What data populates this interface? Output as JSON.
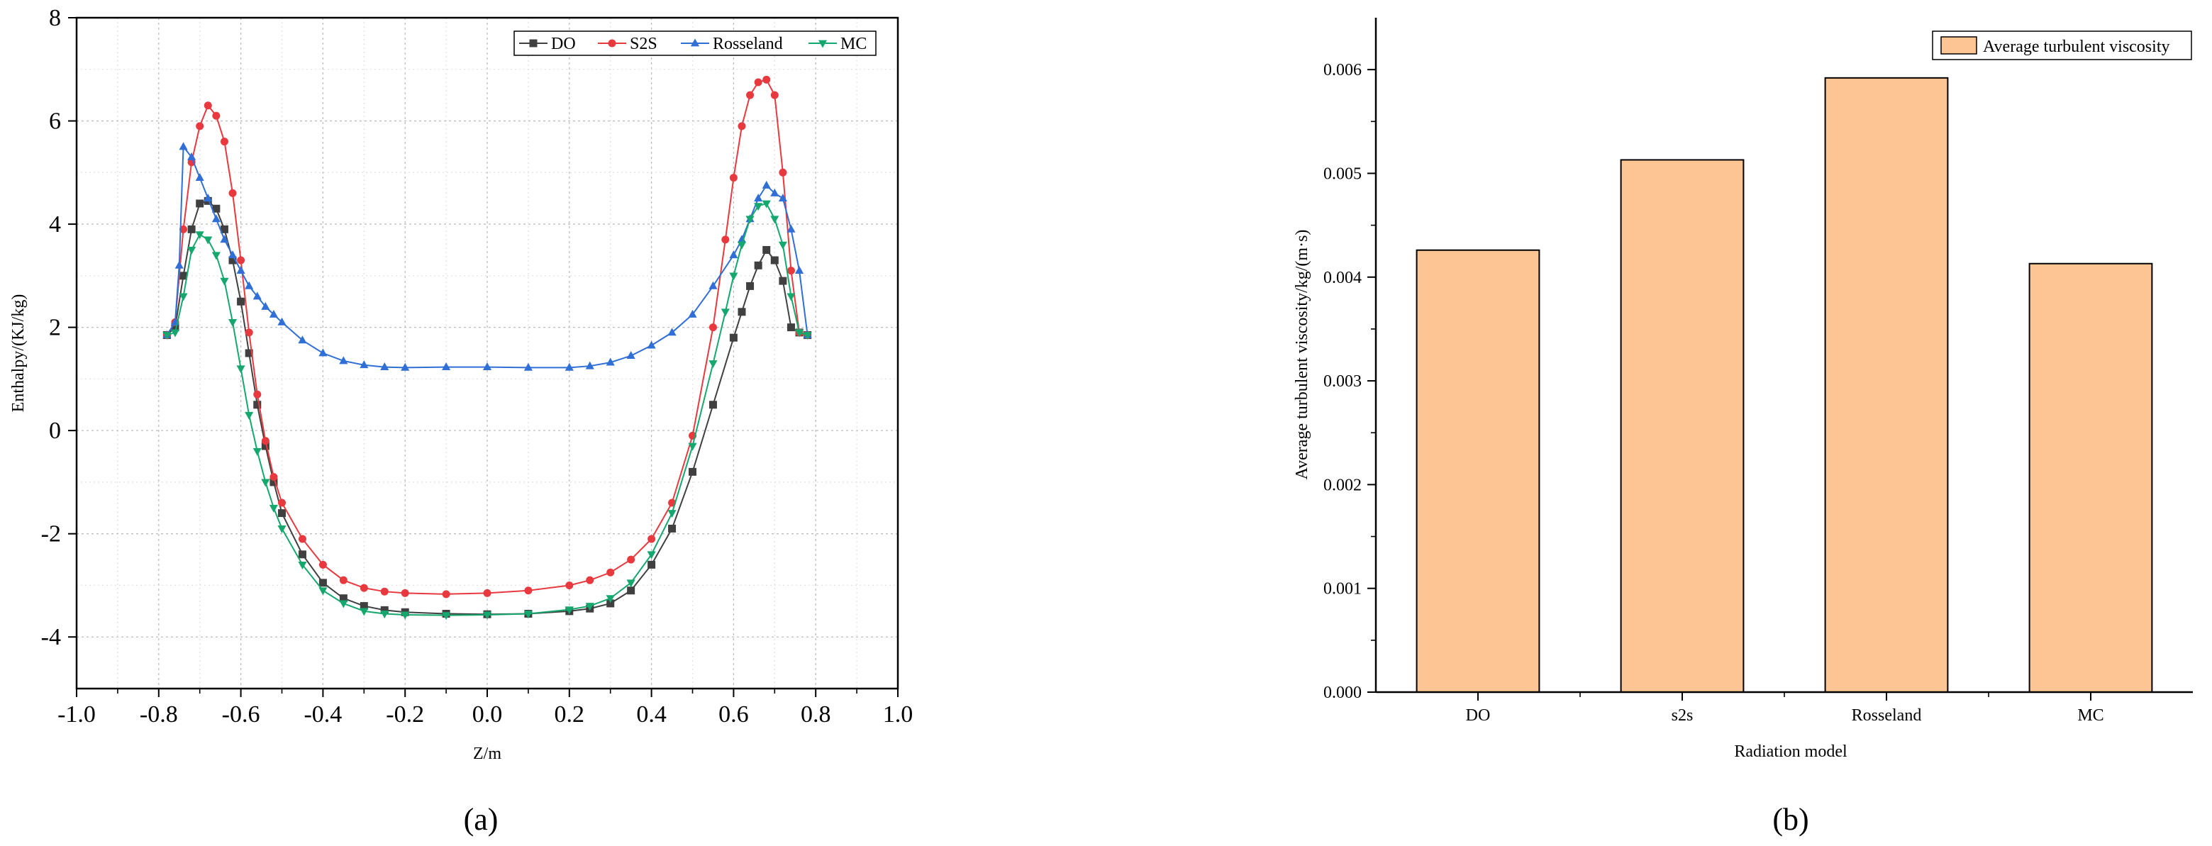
{
  "panel_labels": {
    "a": "(a)",
    "b": "(b)"
  },
  "chart_data": [
    {
      "type": "line",
      "title": "",
      "xlabel": "Z/m",
      "ylabel": "Enthalpy/(KJ/kg)",
      "xlim": [
        -1.0,
        1.0
      ],
      "ylim": [
        -5,
        8
      ],
      "xticks": [
        -1.0,
        -0.8,
        -0.6,
        -0.4,
        -0.2,
        0.0,
        0.2,
        0.4,
        0.6,
        0.8,
        1.0
      ],
      "xtick_labels": [
        "-1.0",
        "-0.8",
        "-0.6",
        "-0.4",
        "-0.2",
        "0.0",
        "0.2",
        "0.4",
        "0.6",
        "0.8",
        "1.0"
      ],
      "yticks": [
        -4,
        -2,
        0,
        2,
        4,
        6,
        8
      ],
      "ytick_labels": [
        "-4",
        "-2",
        "0",
        "2",
        "4",
        "6",
        "8"
      ],
      "grid": true,
      "legend_position": "top-right",
      "series": [
        {
          "name": "DO",
          "color": "#404040",
          "marker": "square",
          "x": [
            -0.78,
            -0.76,
            -0.74,
            -0.72,
            -0.7,
            -0.68,
            -0.66,
            -0.64,
            -0.62,
            -0.6,
            -0.58,
            -0.56,
            -0.54,
            -0.52,
            -0.5,
            -0.45,
            -0.4,
            -0.35,
            -0.3,
            -0.25,
            -0.2,
            -0.1,
            0.0,
            0.1,
            0.2,
            0.25,
            0.3,
            0.35,
            0.4,
            0.45,
            0.5,
            0.55,
            0.6,
            0.62,
            0.64,
            0.66,
            0.68,
            0.7,
            0.72,
            0.74,
            0.76,
            0.78
          ],
          "y": [
            1.85,
            2.0,
            3.0,
            3.9,
            4.4,
            4.45,
            4.3,
            3.9,
            3.3,
            2.5,
            1.5,
            0.5,
            -0.3,
            -1.0,
            -1.6,
            -2.4,
            -2.95,
            -3.25,
            -3.4,
            -3.48,
            -3.52,
            -3.55,
            -3.56,
            -3.55,
            -3.5,
            -3.45,
            -3.35,
            -3.1,
            -2.6,
            -1.9,
            -0.8,
            0.5,
            1.8,
            2.3,
            2.8,
            3.2,
            3.5,
            3.3,
            2.9,
            2.0,
            1.9,
            1.85
          ]
        },
        {
          "name": "S2S",
          "color": "#e8393f",
          "marker": "circle",
          "x": [
            -0.78,
            -0.76,
            -0.74,
            -0.72,
            -0.7,
            -0.68,
            -0.66,
            -0.64,
            -0.62,
            -0.6,
            -0.58,
            -0.56,
            -0.54,
            -0.52,
            -0.5,
            -0.45,
            -0.4,
            -0.35,
            -0.3,
            -0.25,
            -0.2,
            -0.1,
            0.0,
            0.1,
            0.2,
            0.25,
            0.3,
            0.35,
            0.4,
            0.45,
            0.5,
            0.55,
            0.58,
            0.6,
            0.62,
            0.64,
            0.66,
            0.68,
            0.7,
            0.72,
            0.74,
            0.76,
            0.78
          ],
          "y": [
            1.85,
            2.1,
            3.9,
            5.2,
            5.9,
            6.3,
            6.1,
            5.6,
            4.6,
            3.3,
            1.9,
            0.7,
            -0.2,
            -0.9,
            -1.4,
            -2.1,
            -2.6,
            -2.9,
            -3.05,
            -3.12,
            -3.15,
            -3.17,
            -3.15,
            -3.1,
            -3.0,
            -2.9,
            -2.75,
            -2.5,
            -2.1,
            -1.4,
            -0.1,
            2.0,
            3.7,
            4.9,
            5.9,
            6.5,
            6.75,
            6.8,
            6.5,
            5.0,
            3.1,
            1.9,
            1.85
          ]
        },
        {
          "name": "Rosseland",
          "color": "#2f6fd6",
          "marker": "triangle-up",
          "x": [
            -0.78,
            -0.76,
            -0.75,
            -0.74,
            -0.72,
            -0.7,
            -0.68,
            -0.66,
            -0.64,
            -0.62,
            -0.6,
            -0.58,
            -0.56,
            -0.54,
            -0.52,
            -0.5,
            -0.45,
            -0.4,
            -0.35,
            -0.3,
            -0.25,
            -0.2,
            -0.1,
            0.0,
            0.1,
            0.2,
            0.25,
            0.3,
            0.35,
            0.4,
            0.45,
            0.5,
            0.55,
            0.6,
            0.62,
            0.64,
            0.66,
            0.68,
            0.7,
            0.72,
            0.74,
            0.76,
            0.78
          ],
          "y": [
            1.85,
            2.1,
            3.2,
            5.5,
            5.3,
            4.9,
            4.5,
            4.1,
            3.7,
            3.4,
            3.1,
            2.8,
            2.6,
            2.4,
            2.25,
            2.1,
            1.75,
            1.5,
            1.35,
            1.27,
            1.23,
            1.22,
            1.23,
            1.23,
            1.22,
            1.22,
            1.25,
            1.32,
            1.45,
            1.65,
            1.9,
            2.25,
            2.8,
            3.4,
            3.7,
            4.1,
            4.5,
            4.75,
            4.6,
            4.5,
            3.9,
            3.1,
            1.85
          ]
        },
        {
          "name": "MC",
          "color": "#15a86e",
          "marker": "triangle-down",
          "x": [
            -0.78,
            -0.76,
            -0.74,
            -0.72,
            -0.7,
            -0.68,
            -0.66,
            -0.64,
            -0.62,
            -0.6,
            -0.58,
            -0.56,
            -0.54,
            -0.52,
            -0.5,
            -0.45,
            -0.4,
            -0.35,
            -0.3,
            -0.25,
            -0.2,
            -0.1,
            0.0,
            0.1,
            0.2,
            0.25,
            0.3,
            0.35,
            0.4,
            0.45,
            0.5,
            0.55,
            0.58,
            0.6,
            0.62,
            0.64,
            0.66,
            0.68,
            0.7,
            0.72,
            0.74,
            0.76,
            0.78
          ],
          "y": [
            1.85,
            1.9,
            2.6,
            3.5,
            3.8,
            3.7,
            3.4,
            2.9,
            2.1,
            1.2,
            0.3,
            -0.4,
            -1.0,
            -1.5,
            -1.9,
            -2.6,
            -3.1,
            -3.35,
            -3.5,
            -3.55,
            -3.57,
            -3.58,
            -3.57,
            -3.55,
            -3.47,
            -3.4,
            -3.25,
            -2.95,
            -2.4,
            -1.6,
            -0.3,
            1.3,
            2.3,
            3.0,
            3.6,
            4.1,
            4.35,
            4.4,
            4.1,
            3.6,
            2.6,
            1.9,
            1.85
          ]
        }
      ]
    },
    {
      "type": "bar",
      "title": "",
      "xlabel": "Radiation model",
      "ylabel": "Average turbulent viscosity/kg/(m·s)",
      "categories": [
        "DO",
        "s2s",
        "Rosseland",
        "MC"
      ],
      "series": [
        {
          "name": "Average turbulent viscosity",
          "color": "#fdc594",
          "values": [
            0.00426,
            0.00513,
            0.00592,
            0.00413
          ]
        }
      ],
      "ylim": [
        0,
        0.0065
      ],
      "yticks": [
        0,
        0.001,
        0.002,
        0.003,
        0.004,
        0.005,
        0.006
      ],
      "ytick_labels": [
        "0.000",
        "0.001",
        "0.002",
        "0.003",
        "0.004",
        "0.005",
        "0.006"
      ],
      "grid": false,
      "legend_position": "top-right"
    }
  ]
}
